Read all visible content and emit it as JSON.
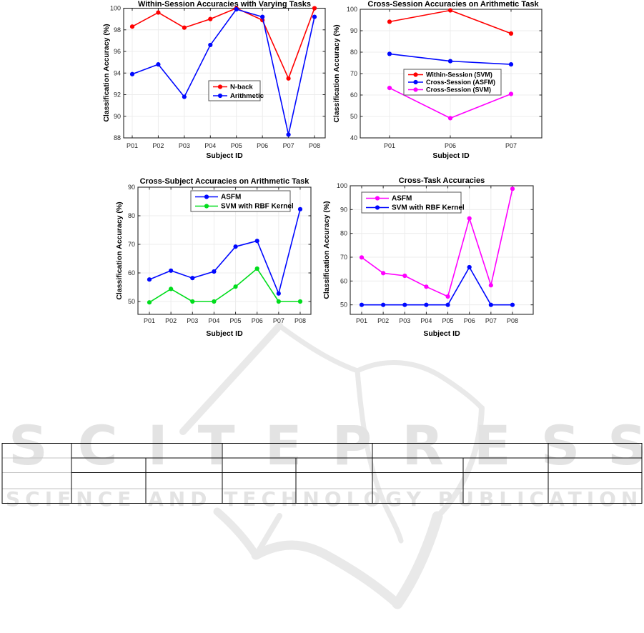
{
  "watermark": {
    "brand": "SCITEPRESS",
    "tagline": "SCIENCE AND TECHNOLOGY PUBLICATIONS",
    "color": "#e3e3e3"
  },
  "figure_style": {
    "grid_color": "#ececec",
    "axis_color": "#262626",
    "grid": true
  },
  "chart_data": [
    {
      "type": "line",
      "title": "Within-Session Accuracies with Varying Tasks",
      "xlabel": "Subject ID",
      "ylabel": "Classification Accuracy (%)",
      "categories": [
        "P01",
        "P02",
        "P03",
        "P04",
        "P05",
        "P06",
        "P07",
        "P08"
      ],
      "ylim": [
        88,
        100
      ],
      "yticks": [
        88,
        90,
        92,
        94,
        96,
        98,
        100
      ],
      "grid": true,
      "legend_position": "center",
      "series": [
        {
          "name": "N-back",
          "color": "#ff0000",
          "values": [
            98.3,
            99.6,
            98.2,
            99.0,
            100,
            98.9,
            93.5,
            100
          ]
        },
        {
          "name": "Arithmetic",
          "color": "#0008ff",
          "values": [
            93.9,
            94.8,
            91.8,
            96.6,
            99.9,
            99.2,
            88.3,
            99.2
          ]
        }
      ]
    },
    {
      "type": "line",
      "title": "Cross-Session Accuracies on Arithmetic Task",
      "xlabel": "Subject ID",
      "ylabel": "Classification Accuracy (%)",
      "categories": [
        "P01",
        "P06",
        "P07"
      ],
      "ylim": [
        40,
        100
      ],
      "yticks": [
        40,
        50,
        60,
        70,
        80,
        90,
        100
      ],
      "grid": true,
      "legend_position": "center-left",
      "series": [
        {
          "name": "Within-Session (SVM)",
          "color": "#ff0000",
          "values": [
            94.2,
            99.5,
            88.7
          ]
        },
        {
          "name": "Cross-Session (ASFM)",
          "color": "#0008ff",
          "values": [
            79.2,
            75.8,
            74.3
          ]
        },
        {
          "name": "Cross-Session (SVM)",
          "color": "#ff00ff",
          "values": [
            63.3,
            49.2,
            60.5
          ]
        }
      ]
    },
    {
      "type": "line",
      "title": "Cross-Subject Accuracies on Arithmetic Task",
      "xlabel": "Subject ID",
      "ylabel": "Classification Accuracy (%)",
      "categories": [
        "P01",
        "P02",
        "P03",
        "P04",
        "P05",
        "P06",
        "P07",
        "P08"
      ],
      "ylim": [
        45.5,
        90
      ],
      "yticks": [
        50,
        60,
        70,
        80,
        90
      ],
      "grid": true,
      "legend_position": "upper-center",
      "series": [
        {
          "name": "ASFM",
          "color": "#0008ff",
          "values": [
            57.7,
            60.8,
            58.2,
            60.5,
            69.2,
            71.2,
            52.8,
            82.3
          ]
        },
        {
          "name": "SVM with RBF Kernel",
          "color": "#00dd1c",
          "values": [
            49.7,
            54.4,
            50,
            50,
            55.2,
            61.5,
            50,
            50
          ]
        }
      ]
    },
    {
      "type": "line",
      "title": "Cross-Task Accuracies",
      "xlabel": "Subject ID",
      "ylabel": "Classification Accuracy (%)",
      "categories": [
        "P01",
        "P02",
        "P03",
        "P04",
        "P05",
        "P06",
        "P07",
        "P08"
      ],
      "ylim": [
        46,
        100
      ],
      "yticks": [
        50,
        60,
        70,
        80,
        90,
        100
      ],
      "grid": true,
      "legend_position": "upper-left",
      "series": [
        {
          "name": "ASFM",
          "color": "#ff00ff",
          "values": [
            69.9,
            63.3,
            62.2,
            57.6,
            53.5,
            86.3,
            58.2,
            98.7
          ]
        },
        {
          "name": "SVM with RBF Kernel",
          "color": "#0008ff",
          "values": [
            50,
            50,
            50,
            50,
            50,
            65.8,
            50,
            50
          ]
        }
      ]
    }
  ],
  "table": {
    "cells_text": ""
  }
}
